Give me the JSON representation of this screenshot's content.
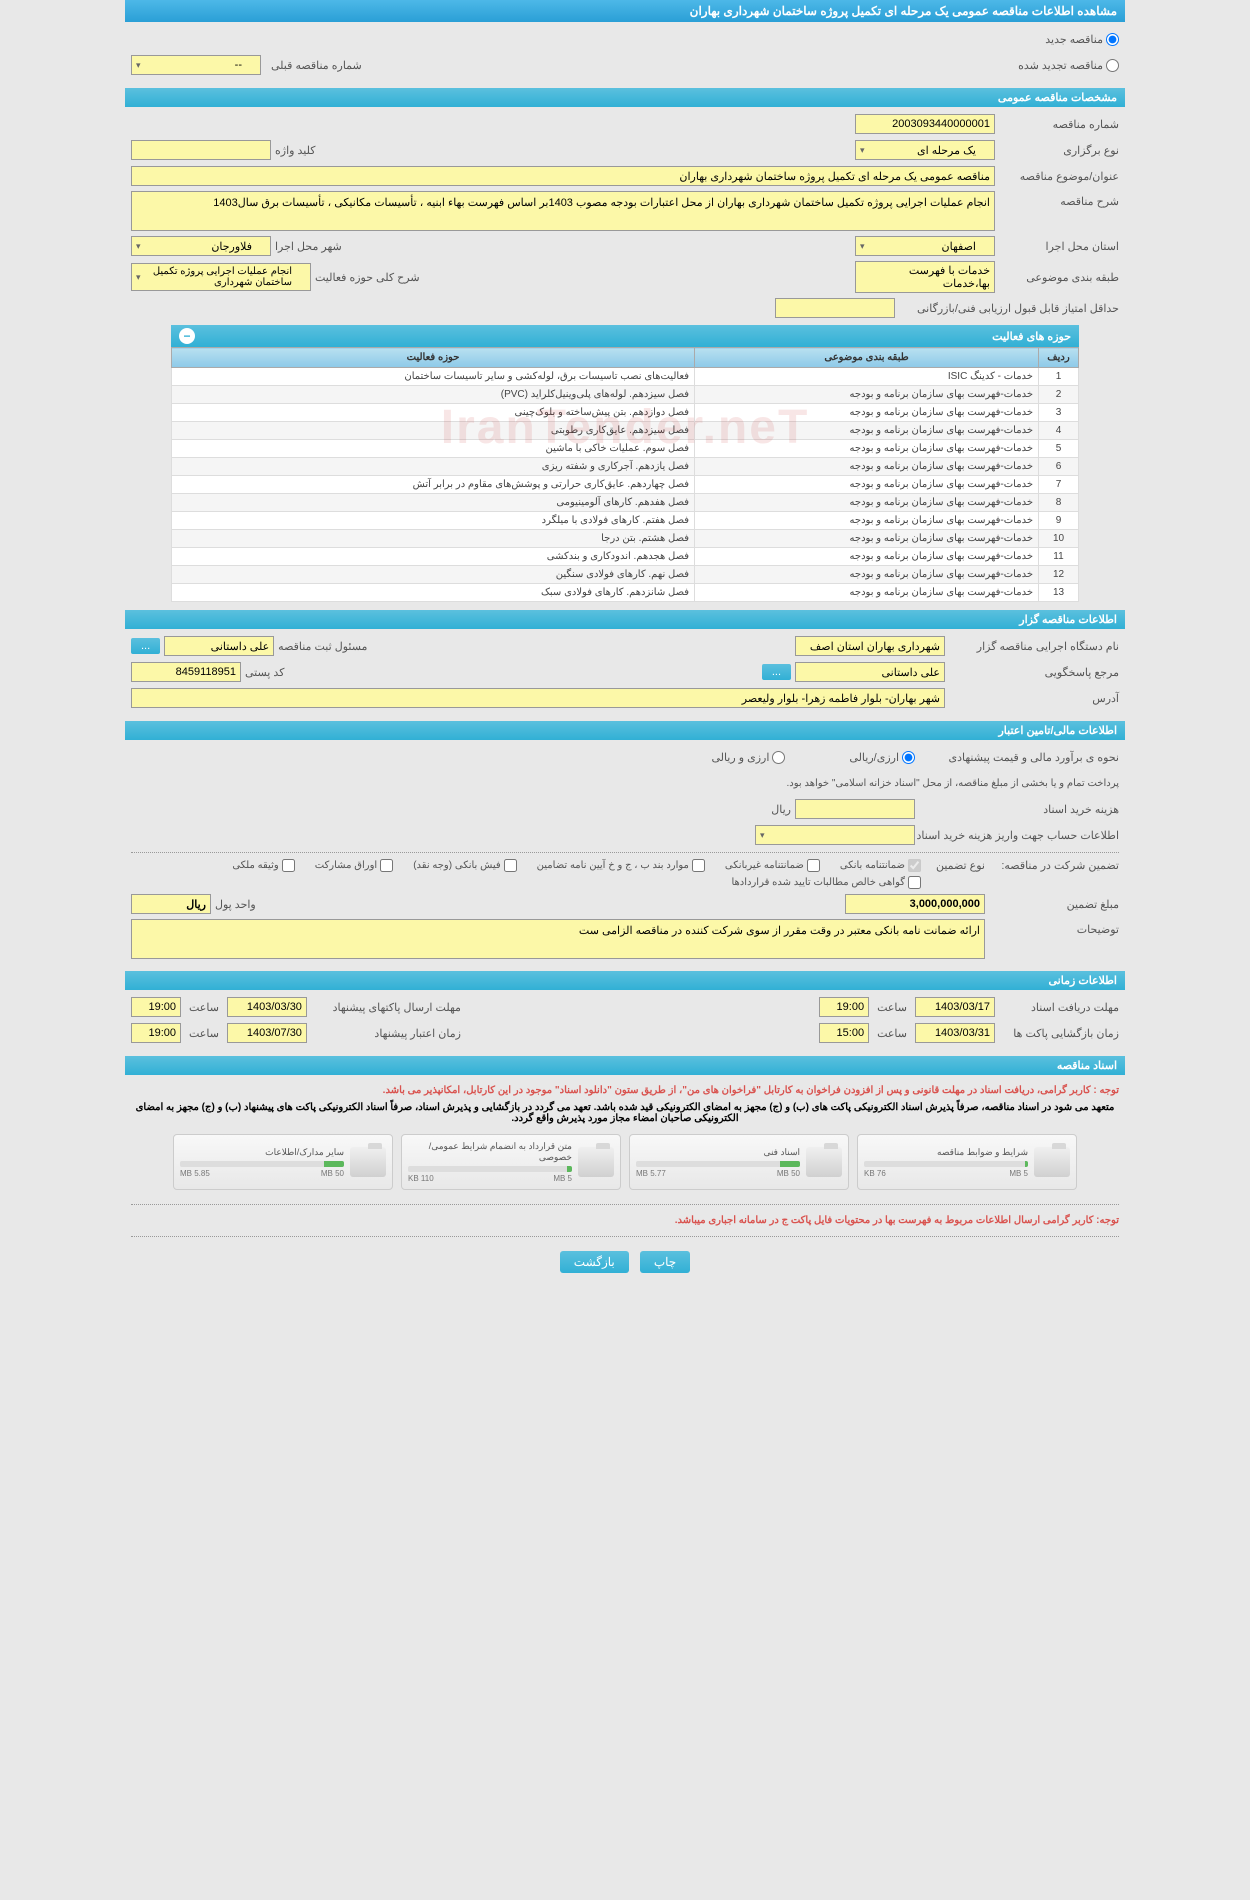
{
  "header": {
    "title": "مشاهده اطلاعات مناقصه عمومی یک مرحله ای تکمیل پروژه ساختمان شهرداری بهاران"
  },
  "top_options": {
    "new_tender": "مناقصه جدید",
    "renewed_tender": "مناقصه تجدید شده",
    "prev_tender_label": "شماره مناقصه قبلی",
    "prev_tender_value": "--"
  },
  "sections": {
    "general": "مشخصات مناقصه عمومی",
    "organizer": "اطلاعات مناقصه گزار",
    "financial": "اطلاعات مالی/تامین اعتبار",
    "timing": "اطلاعات زمانی",
    "documents": "اسناد مناقصه"
  },
  "general": {
    "tender_no_label": "شماره مناقصه",
    "tender_no": "2003093440000001",
    "type_label": "نوع برگزاری",
    "type": "یک مرحله ای",
    "keyword_label": "کلید واژه",
    "keyword": "",
    "subject_label": "عنوان/موضوع مناقصه",
    "subject": "مناقصه عمومی یک مرحله ای تکمیل پروژه ساختمان شهرداری بهاران",
    "desc_label": "شرح مناقصه",
    "desc": "انجام عملیات اجرایی پروژه تکمیل ساختمان شهرداری بهاران از محل اعتبارات بودجه مصوب 1403بر اساس فهرست بهاء ابنیه ، تأسیسات مکانیکی ، تأسیسات برق سال1403",
    "province_label": "استان محل اجرا",
    "province": "اصفهان",
    "city_label": "شهر محل اجرا",
    "city": "فلاورجان",
    "category_label": "طبقه بندی موضوعی",
    "category": "خدمات با فهرست بها،خدمات",
    "activity_scope_label": "شرح کلی حوزه فعالیت",
    "activity_scope": "انجام عملیات اجرایی پروژه تکمیل ساختمان شهرداری",
    "min_score_label": "حداقل امتیاز قابل قبول ارزیابی فنی/بازرگانی",
    "min_score": ""
  },
  "activities": {
    "title": "حوزه های فعالیت",
    "col_row": "ردیف",
    "col_category": "طبقه بندی موضوعی",
    "col_activity": "حوزه فعالیت",
    "rows": [
      {
        "n": "1",
        "cat": "خدمات - کدینگ ISIC",
        "act": "فعالیت‌های نصب تاسیسات برق، لوله‌کشی و سایر تاسیسات ساختمان"
      },
      {
        "n": "2",
        "cat": "خدمات-فهرست بهای سازمان برنامه و بودجه",
        "act": "فصل سیزدهم. لوله‌های پلی‌وینیل‌کلراید (PVC)"
      },
      {
        "n": "3",
        "cat": "خدمات-فهرست بهای سازمان برنامه و بودجه",
        "act": "فصل دوازدهم. بتن پیش‌ساخته و بلوک‌چینی"
      },
      {
        "n": "4",
        "cat": "خدمات-فهرست بهای سازمان برنامه و بودجه",
        "act": "فصل سیزدهم. عایق‌کاری رطوبتی"
      },
      {
        "n": "5",
        "cat": "خدمات-فهرست بهای سازمان برنامه و بودجه",
        "act": "فصل سوم. عملیات خاکی با ماشین"
      },
      {
        "n": "6",
        "cat": "خدمات-فهرست بهای سازمان برنامه و بودجه",
        "act": "فصل یازدهم. آجرکاری و شفته ریزی"
      },
      {
        "n": "7",
        "cat": "خدمات-فهرست بهای سازمان برنامه و بودجه",
        "act": "فصل چهاردهم. عایق‌کاری حرارتی و پوشش‌های مقاوم در برابر آتش"
      },
      {
        "n": "8",
        "cat": "خدمات-فهرست بهای سازمان برنامه و بودجه",
        "act": "فصل هفدهم. کارهای آلومینیومی"
      },
      {
        "n": "9",
        "cat": "خدمات-فهرست بهای سازمان برنامه و بودجه",
        "act": "فصل هفتم. کارهای فولادی با میلگرد"
      },
      {
        "n": "10",
        "cat": "خدمات-فهرست بهای سازمان برنامه و بودجه",
        "act": "فصل هشتم. بتن درجا"
      },
      {
        "n": "11",
        "cat": "خدمات-فهرست بهای سازمان برنامه و بودجه",
        "act": "فصل هجدهم. اندودکاری و بندکشی"
      },
      {
        "n": "12",
        "cat": "خدمات-فهرست بهای سازمان برنامه و بودجه",
        "act": "فصل نهم. کارهای فولادی سنگین"
      },
      {
        "n": "13",
        "cat": "خدمات-فهرست بهای سازمان برنامه و بودجه",
        "act": "فصل شانزدهم. کارهای فولادی سبک"
      }
    ]
  },
  "organizer": {
    "org_label": "نام دستگاه اجرایی مناقصه گزار",
    "org": "شهرداری بهاران استان اصف",
    "registrar_label": "مسئول ثبت مناقصه",
    "registrar": "علی داستانی",
    "responder_label": "مرجع پاسخگویی",
    "responder": "علی داستانی",
    "postcode_label": "کد پستی",
    "postcode": "8459118951",
    "address_label": "آدرس",
    "address": "شهر بهاران- بلوار فاطمه زهرا- بلوار ولیعصر",
    "more": "..."
  },
  "financial": {
    "method_label": "نحوه ی برآورد مالی و قیمت پیشنهادی",
    "opt_rial": "ارزی/ریالی",
    "opt_currency": "ارزی و ریالی",
    "payment_note": "پرداخت تمام و یا بخشی از مبلغ مناقصه، از محل \"اسناد خزانه اسلامی\" خواهد بود.",
    "doc_cost_label": "هزینه خرید اسناد",
    "doc_cost": "",
    "doc_cost_unit": "ریال",
    "account_label": "اطلاعات حساب جهت واریز هزینه خرید اسناد",
    "account": "",
    "guarantee_label": "تضمین شرکت در مناقصه:",
    "guarantee_type_label": "نوع تضمین",
    "guarantees": {
      "bank": "ضمانتنامه بانکی",
      "nonbank": "ضمانتنامه غیربانکی",
      "cases": "موارد بند ب ، ج و خ آیین نامه تضامین",
      "cash": "فیش بانکی (وجه نقد)",
      "bonds": "اوراق مشارکت",
      "property": "وثیقه ملکی",
      "receivables": "گواهی خالص مطالبات تایید شده قراردادها"
    },
    "amount_label": "مبلغ تضمین",
    "amount": "3,000,000,000",
    "unit_label": "واحد پول",
    "unit": "ریال",
    "notes_label": "توضیحات",
    "notes": "ارائه ضمانت نامه بانکی معتبر در وقت مقرر از سوی شرکت کننده در مناقصه الزامی ست"
  },
  "timing": {
    "receive_label": "مهلت دریافت اسناد",
    "receive_date": "1403/03/17",
    "receive_time_label": "ساعت",
    "receive_time": "19:00",
    "send_label": "مهلت ارسال پاکتهای پیشنهاد",
    "send_date": "1403/03/30",
    "send_time": "19:00",
    "open_label": "زمان بازگشایی پاکت ها",
    "open_date": "1403/03/31",
    "open_time": "15:00",
    "valid_label": "زمان اعتبار پیشنهاد",
    "valid_date": "1403/07/30",
    "valid_time": "19:00"
  },
  "documents": {
    "notice1": "توجه : کاربر گرامی، دریافت اسناد در مهلت قانونی و پس از افزودن فراخوان به کارتابل \"فراخوان های من\"، از طریق ستون \"دانلود اسناد\" موجود در این کارتابل، امکانپذیر می باشد.",
    "notice2": "متعهد می شود در اسناد مناقصه، صرفاً پذیرش اسناد الکترونیکی پاکت های (ب) و (ج) مجهز به امضای الکترونیکی قید شده باشد. تعهد می گردد در بازگشایی و پذیرش اسناد، صرفاً اسناد الکترونیکی پاکت های پیشنهاد (ب) و (ج) مجهز به امضای الکترونیکی صاحبان امضاء مجاز مورد پذیرش واقع گردد.",
    "notice3": "توجه: کاربر گرامی ارسال اطلاعات مربوط به فهرست بها در محتویات فایل پاکت ج در سامانه اجباری میباشد.",
    "files": [
      {
        "title": "شرایط و ضوابط مناقصه",
        "used": "76 KB",
        "total": "5 MB",
        "pct": 2
      },
      {
        "title": "اسناد فنی",
        "used": "5.77 MB",
        "total": "50 MB",
        "pct": 12
      },
      {
        "title": "متن قرارداد به انضمام شرایط عمومی/خصوصی",
        "used": "110 KB",
        "total": "5 MB",
        "pct": 3
      },
      {
        "title": "سایر مدارک/اطلاعات",
        "used": "5.85 MB",
        "total": "50 MB",
        "pct": 12
      }
    ]
  },
  "buttons": {
    "print": "چاپ",
    "back": "بازگشت"
  },
  "watermark": "IranTender.neT"
}
